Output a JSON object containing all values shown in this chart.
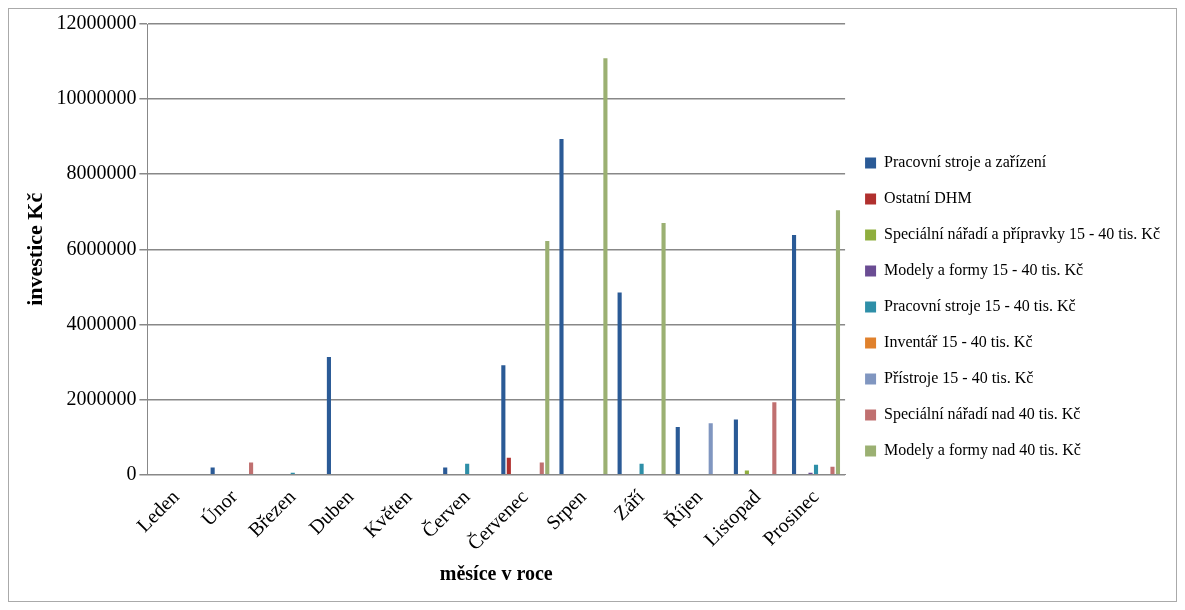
{
  "chart_data": {
    "type": "bar",
    "xlabel": "měsíce v roce",
    "ylabel": "investice Kč",
    "categories": [
      "Leden",
      "Únor",
      "Březen",
      "Duben",
      "Květen",
      "Červen",
      "Červenec",
      "Srpen",
      "Září",
      "Říjen",
      "Listopad",
      "Prosinec"
    ],
    "series": [
      {
        "name": "Pracovní stroje a zařízení",
        "color": "#2a5a96",
        "values": [
          0,
          190000,
          0,
          3130000,
          0,
          190000,
          2910000,
          8940000,
          4850000,
          1270000,
          1470000,
          6380000
        ]
      },
      {
        "name": "Ostatní DHM",
        "color": "#b0302e",
        "values": [
          0,
          0,
          0,
          0,
          0,
          0,
          450000,
          0,
          0,
          0,
          0,
          0
        ]
      },
      {
        "name": "Speciální nářadí a přípravky 15 - 40 tis. Kč",
        "color": "#8fae3e",
        "values": [
          0,
          20000,
          20000,
          0,
          0,
          0,
          0,
          0,
          0,
          0,
          110000,
          0
        ]
      },
      {
        "name": "Modely a formy 15 - 40 tis. Kč",
        "color": "#6a4c93",
        "values": [
          0,
          20000,
          0,
          0,
          0,
          0,
          0,
          0,
          20000,
          20000,
          0,
          50000
        ]
      },
      {
        "name": "Pracovní stroje 15 - 40 tis. Kč",
        "color": "#2e8fa8",
        "values": [
          0,
          20000,
          50000,
          0,
          20000,
          290000,
          0,
          20000,
          290000,
          0,
          20000,
          260000
        ]
      },
      {
        "name": "Inventář 15 - 40 tis. Kč",
        "color": "#e0812c",
        "values": [
          0,
          20000,
          0,
          0,
          0,
          0,
          0,
          0,
          0,
          0,
          20000,
          20000
        ]
      },
      {
        "name": "Přístroje 15 - 40 tis. Kč",
        "color": "#8096c0",
        "values": [
          0,
          0,
          0,
          0,
          0,
          0,
          0,
          0,
          0,
          1370000,
          0,
          0
        ]
      },
      {
        "name": "Speciální nářadí nad 40 tis. Kč",
        "color": "#c07070",
        "values": [
          0,
          320000,
          0,
          0,
          0,
          0,
          320000,
          0,
          0,
          0,
          1930000,
          210000
        ]
      },
      {
        "name": "Modely a formy nad 40 tis. Kč",
        "color": "#9bb072",
        "values": [
          0,
          20000,
          0,
          0,
          0,
          0,
          6220000,
          11090000,
          6700000,
          0,
          0,
          7040000
        ]
      }
    ],
    "ylim": [
      0,
      12000000
    ],
    "yticks": [
      0,
      2000000,
      4000000,
      6000000,
      8000000,
      10000000,
      12000000
    ],
    "grid": "y",
    "legend": "right"
  }
}
